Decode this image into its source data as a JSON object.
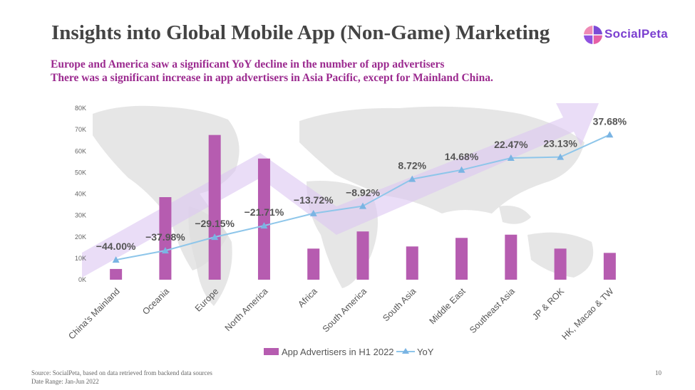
{
  "header": {
    "title": "Insights into Global Mobile App (Non-Game) Marketing",
    "subtitle_lines": [
      "Europe and America saw a significant YoY decline in the number of app advertisers",
      "There was a significant increase in app advertisers in Asia Pacific, except for Mainland China."
    ],
    "logo_text": "SocialPeta"
  },
  "footer": {
    "source": "Source: SocialPeta, based on data retrieved from backend data sources",
    "date_range": "Date Range: Jan-Jun 2022",
    "page_number": "10"
  },
  "colors": {
    "bar": "#b65cb0",
    "line": "#8ec6ea",
    "marker": "#7ab4e3",
    "title": "#444444",
    "subtitle": "#9b2a8f",
    "arrow": "#dcc6f2",
    "map": "#d8d8d8"
  },
  "chart_data": {
    "type": "bar",
    "categories": [
      "China's Mainland",
      "Oceania",
      "Europe",
      "North America",
      "Africa",
      "South America",
      "South Asia",
      "Middle East",
      "Southeast Asia",
      "JP & ROK",
      "HK, Macao & TW"
    ],
    "y_ticks": [
      "0K",
      "10K",
      "20K",
      "30K",
      "40K",
      "50K",
      "60K",
      "70K",
      "80K"
    ],
    "ylim": [
      0,
      80000
    ],
    "series": [
      {
        "name": "App Advertisers in H1 2022",
        "type": "bar",
        "values": [
          5000,
          38500,
          67500,
          56500,
          14500,
          22500,
          15500,
          19500,
          21000,
          14500,
          12500
        ]
      },
      {
        "name": "YoY",
        "type": "line",
        "values": [
          -44.0,
          -37.98,
          -29.15,
          -21.71,
          -13.72,
          -8.92,
          8.72,
          14.68,
          22.47,
          23.13,
          37.68
        ],
        "labels": [
          "-44.00%",
          "-37.98%",
          "-29.15%",
          "-21.71%",
          "-13.72%",
          "-8.92%",
          "8.72%",
          "14.68%",
          "22.47%",
          "23.13%",
          "37.68%"
        ],
        "ylim": [
          -50,
          42
        ]
      }
    ],
    "legend_position": "bottom",
    "grid": false
  }
}
